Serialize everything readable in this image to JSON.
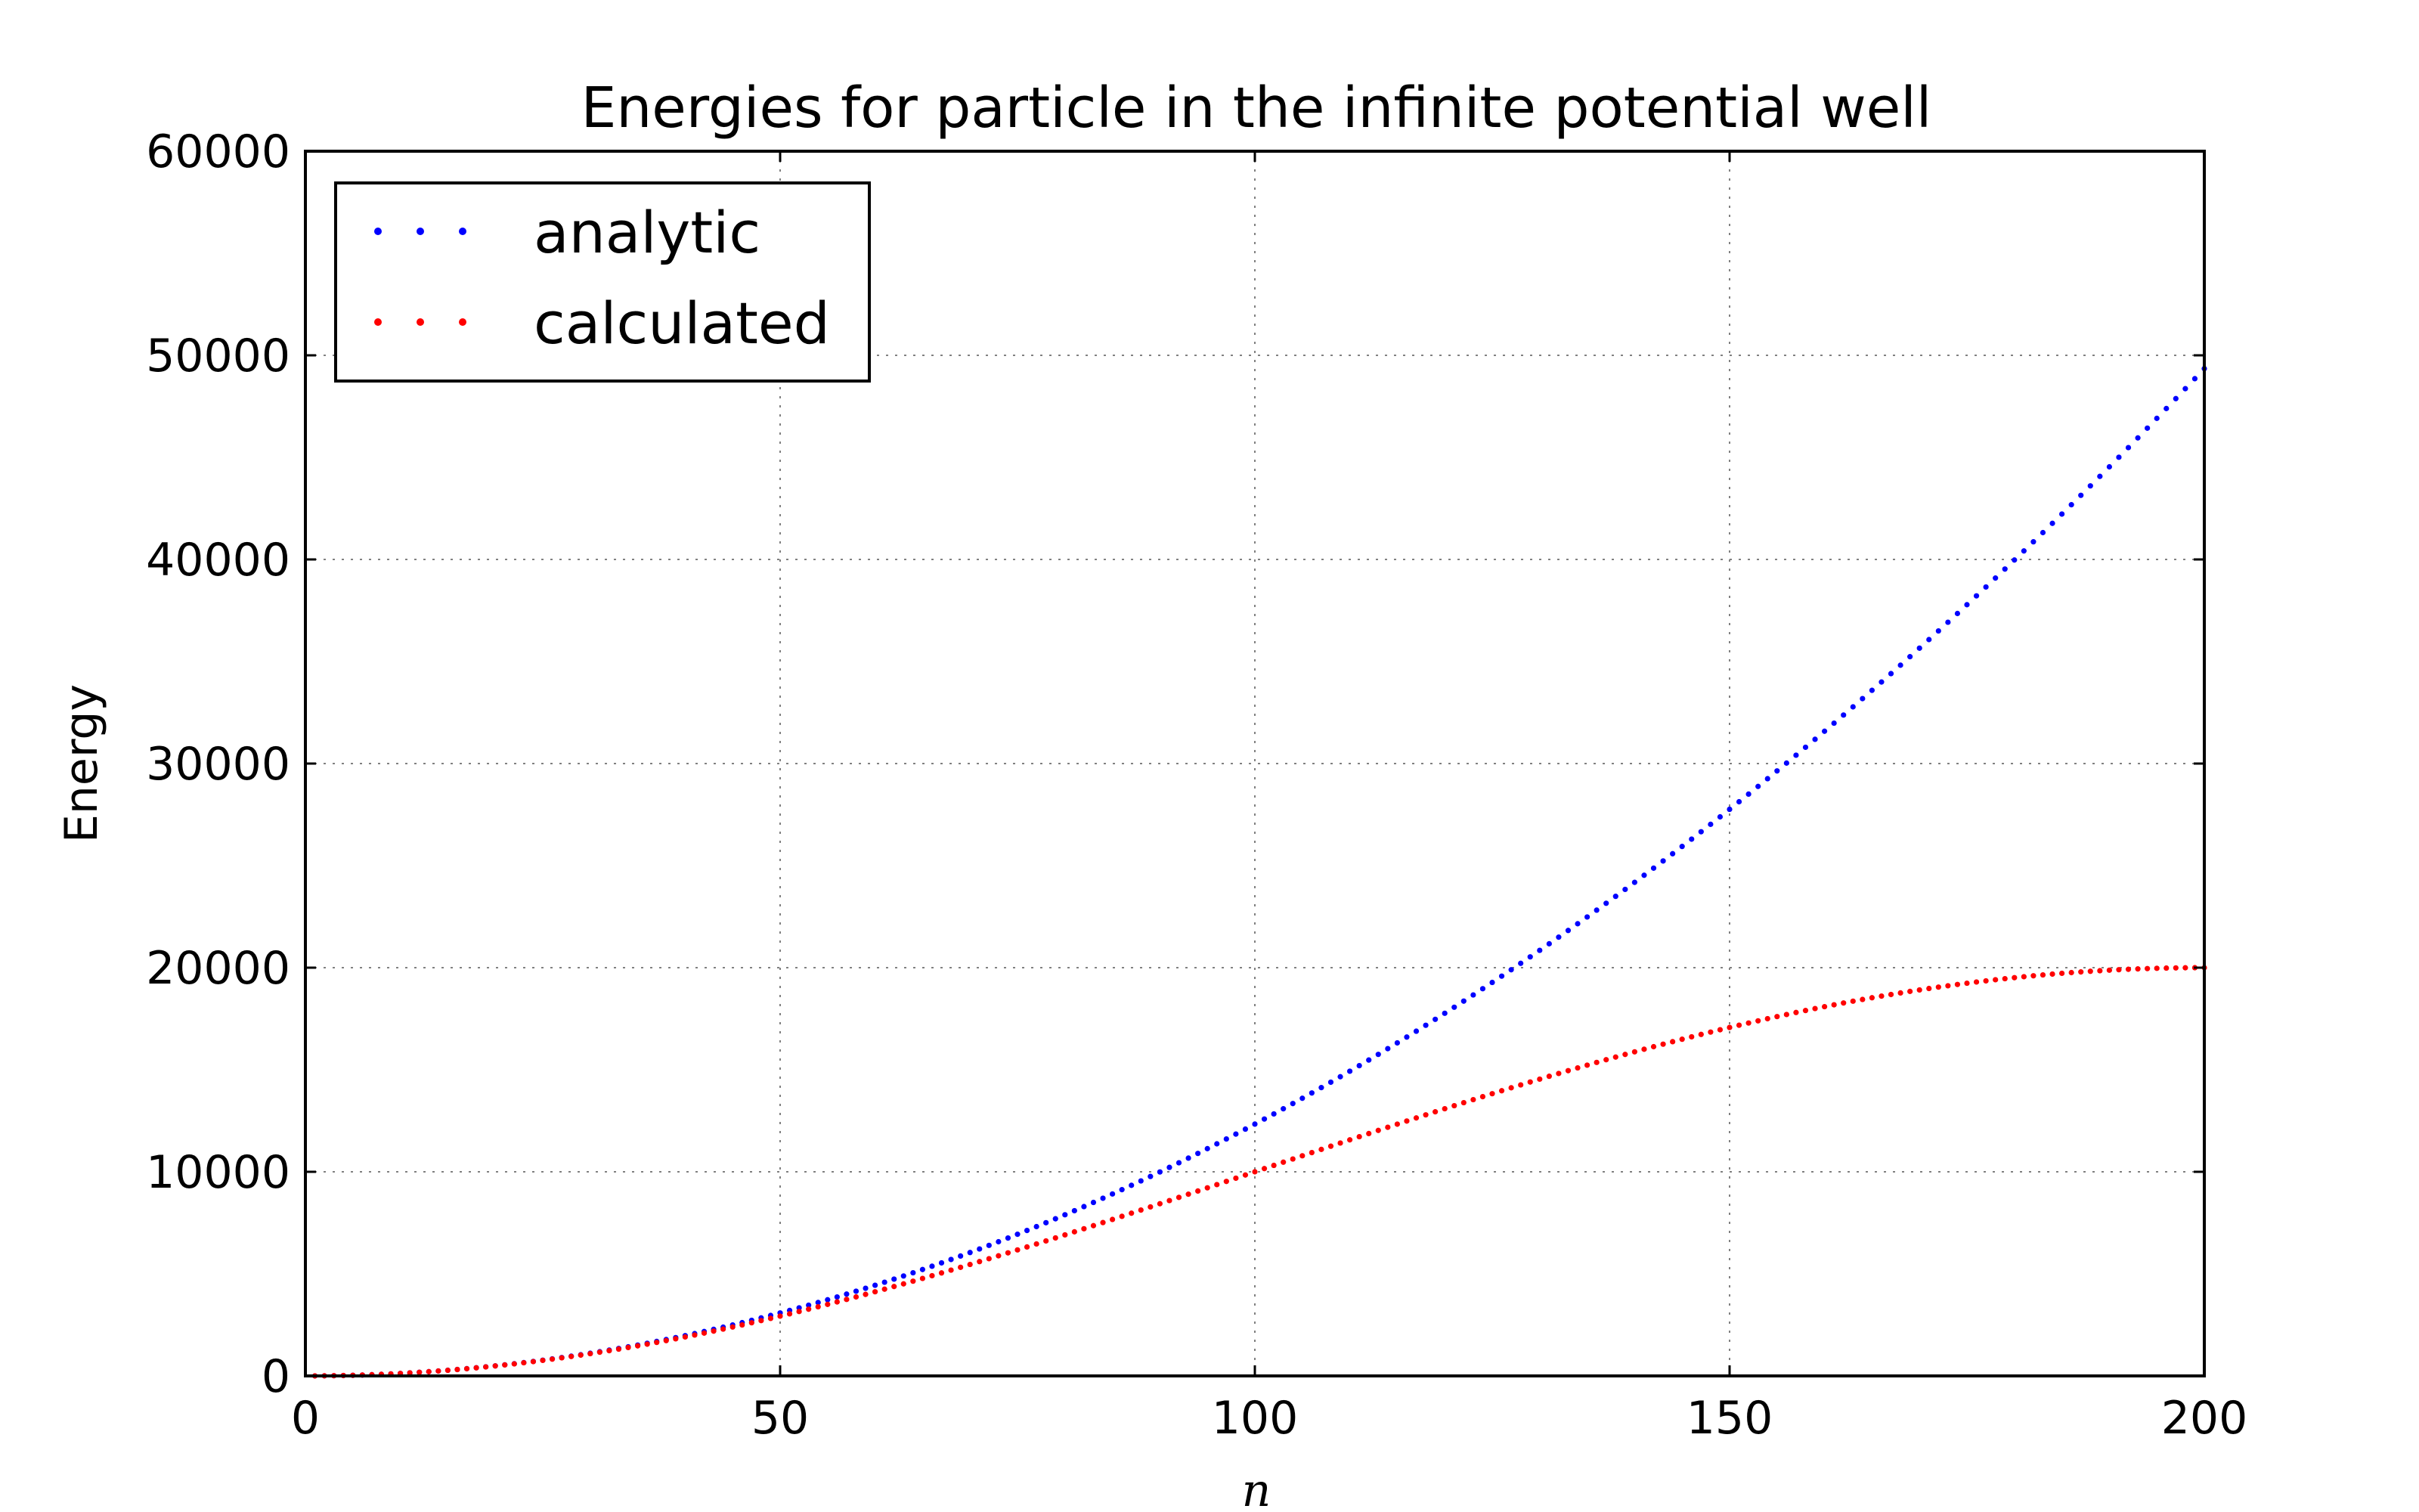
{
  "chart_data": {
    "type": "scatter",
    "title": "Energies for particle in the infinite potential well",
    "xlabel": "n",
    "ylabel": "Energy",
    "xlim": [
      0,
      200
    ],
    "ylim": [
      0,
      60000
    ],
    "x_ticks": [
      "0",
      "50",
      "100",
      "150",
      "200"
    ],
    "y_ticks": [
      "0",
      "10000",
      "20000",
      "30000",
      "40000",
      "50000",
      "60000"
    ],
    "grid": true,
    "legend_position": "top-left",
    "n_points": 200,
    "series": [
      {
        "name": "analytic",
        "color": "#0000ff",
        "description_values": {
          "x": [
            1,
            50,
            100,
            150,
            200
          ],
          "y": [
            1.23,
            3084,
            12337,
            27758,
            49348
          ]
        }
      },
      {
        "name": "calculated",
        "color": "#ff0000",
        "description_values": {
          "x": [
            1,
            50,
            100,
            150,
            200
          ],
          "y": [
            1.23,
            2929,
            10000,
            17071,
            20000
          ]
        }
      }
    ]
  }
}
